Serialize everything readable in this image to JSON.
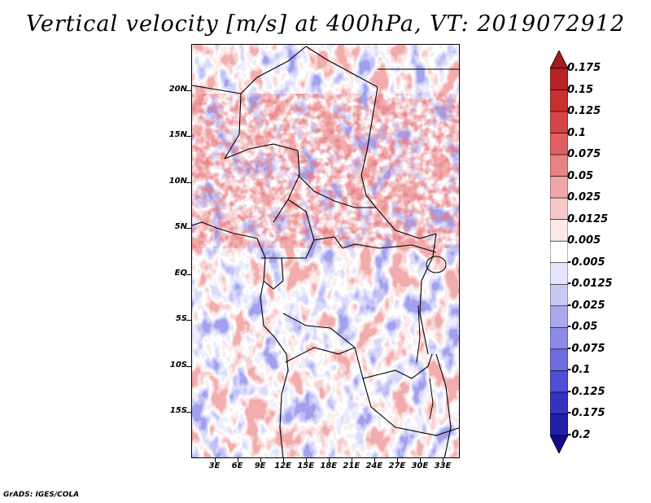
{
  "title": "Vertical velocity [m/s] at 400hPa, VT: 2019072912",
  "credit": "GrADS: IGES/COLA",
  "map": {
    "lon_range": [
      0,
      36
    ],
    "lat_range": [
      -20,
      25
    ],
    "lat_labels": [
      "20N",
      "15N",
      "10N",
      "5N",
      "EQ",
      "5S",
      "10S",
      "15S"
    ],
    "lon_labels": [
      "3E",
      "6E",
      "9E",
      "12E",
      "15E",
      "18E",
      "21E",
      "24E",
      "27E",
      "30E",
      "33E"
    ]
  },
  "colorbar": {
    "labels": [
      "0.175",
      "0.15",
      "0.125",
      "0.1",
      "0.075",
      "0.05",
      "0.025",
      "0.0125",
      "0.005",
      "-0.005",
      "-0.0125",
      "-0.025",
      "-0.05",
      "-0.075",
      "-0.1",
      "-0.125",
      "-0.175",
      "-0.2"
    ],
    "colors": [
      "#a41a1a",
      "#b82222",
      "#c93030",
      "#d54545",
      "#df6060",
      "#e88383",
      "#f0a6a6",
      "#f6c9c9",
      "#fbe8e8",
      "#ffffff",
      "#e6e6fa",
      "#c8c8f2",
      "#a9a9ec",
      "#8b8be6",
      "#6d6de0",
      "#4f4fd3",
      "#3333c0",
      "#1f1fa8",
      "#120c8c"
    ]
  }
}
